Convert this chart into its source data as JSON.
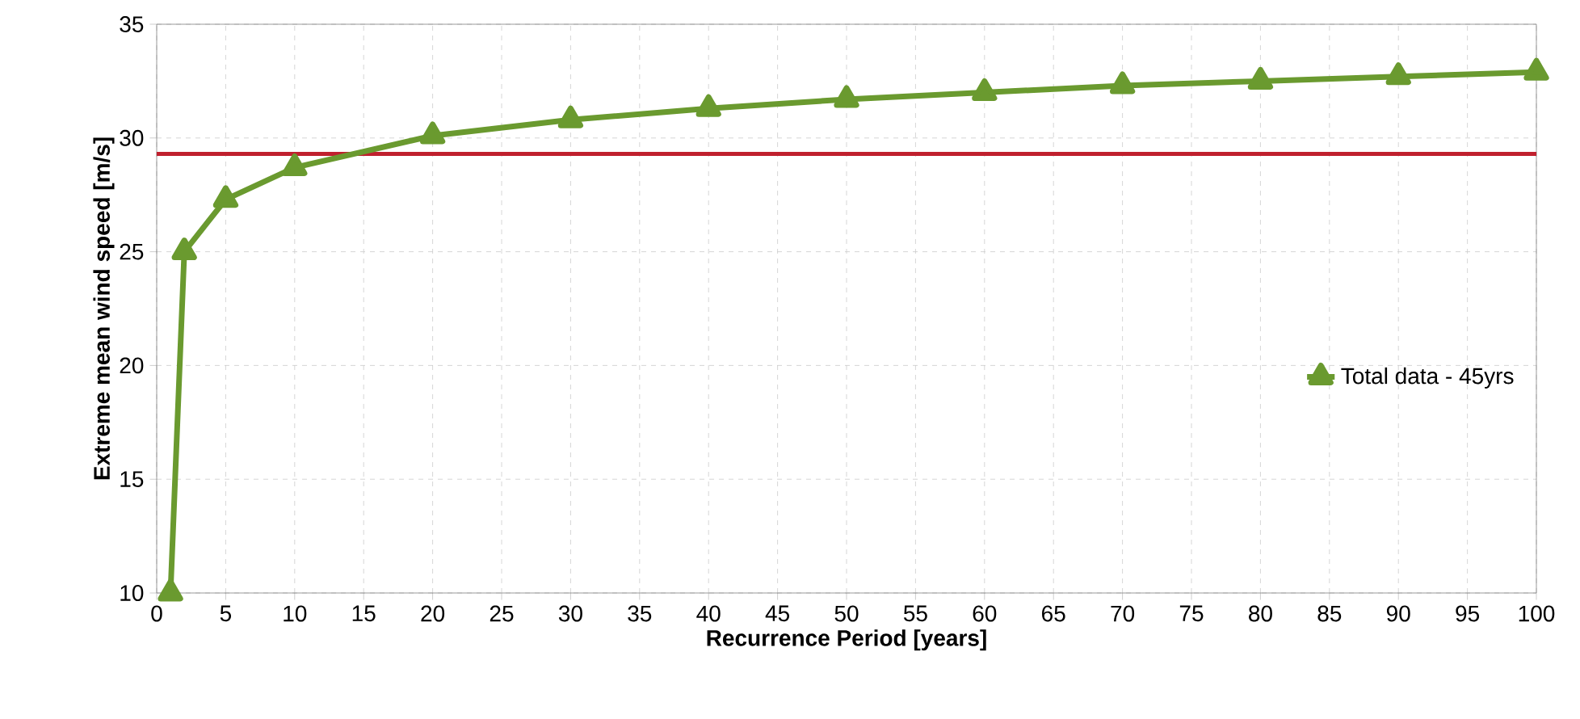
{
  "chart_data": {
    "type": "line",
    "xlabel": "Recurrence Period [years]",
    "ylabel": "Extreme mean wind speed [m/s]",
    "x": [
      1,
      2,
      5,
      10,
      20,
      30,
      40,
      50,
      60,
      70,
      80,
      90,
      100
    ],
    "series": [
      {
        "name": "Total data - 45yrs",
        "color": "#6a9a2f",
        "values": [
          10,
          25,
          27.3,
          28.7,
          30.1,
          30.8,
          31.3,
          31.7,
          32.0,
          32.3,
          32.5,
          32.7,
          32.9
        ]
      }
    ],
    "xlim": [
      0,
      100
    ],
    "xticks": [
      0,
      5,
      10,
      15,
      20,
      25,
      30,
      35,
      40,
      45,
      50,
      55,
      60,
      65,
      70,
      75,
      80,
      85,
      90,
      95,
      100
    ],
    "ylim": [
      10,
      35
    ],
    "yticks": [
      10,
      15,
      20,
      25,
      30,
      35
    ],
    "ref_lines": [
      {
        "axis": "y",
        "value": 29.3,
        "color": "#c0202e"
      }
    ],
    "grid": true,
    "legend": "right",
    "marker": "triangle",
    "line_style": "solid"
  }
}
